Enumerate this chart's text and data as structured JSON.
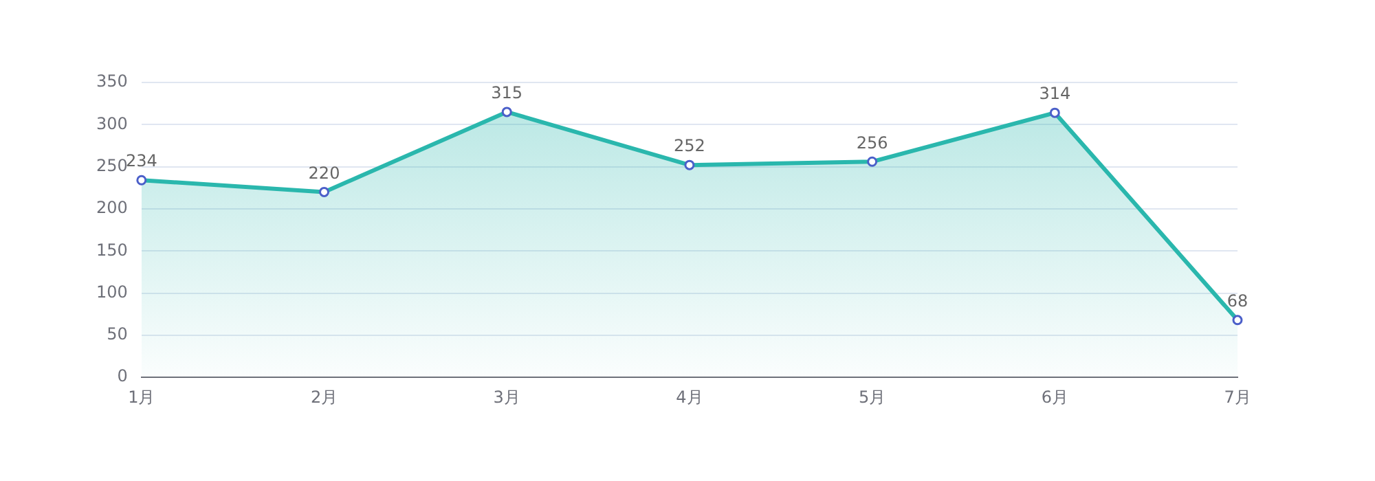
{
  "chart_data": {
    "type": "area",
    "categories": [
      "1月",
      "2月",
      "3月",
      "4月",
      "5月",
      "6月",
      "7月"
    ],
    "series": [
      {
        "color": "#2ab7ad",
        "values": [
          234,
          220,
          315,
          252,
          256,
          314,
          68
        ]
      }
    ],
    "ylim": [
      0,
      350
    ],
    "yticks": [
      0,
      50,
      100,
      150,
      200,
      250,
      300,
      350
    ],
    "grid": "y",
    "legend": false,
    "marker": "circle",
    "data_labels": true
  }
}
